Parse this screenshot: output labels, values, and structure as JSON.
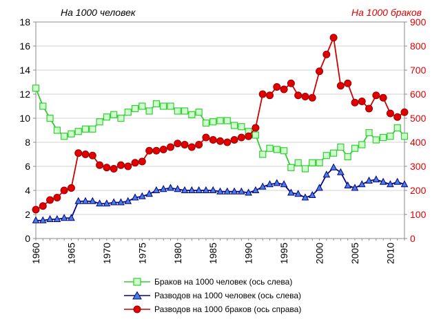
{
  "unit_labels": {
    "left": "На 1000 человек",
    "right": "На 1000 браков"
  },
  "legend": [
    {
      "label": "Браков на 1000 человек (ось слева)"
    },
    {
      "label": "Разводов на 1000 человек (ось слева)"
    },
    {
      "label": "Разводов на 1000 браков (ось справа)"
    }
  ],
  "colors": {
    "marriages": "#33cc33",
    "marriages_fill": "#ccffcc",
    "divorces_per_people": "#00008b",
    "divorces_per_people_fill": "#4a7fd8",
    "divorces_per_marriages": "#cc0000",
    "grid": "#d0d0d0",
    "right_axis_text": "#e00000"
  },
  "chart_data": {
    "type": "line",
    "x": [
      1960,
      1961,
      1962,
      1963,
      1964,
      1965,
      1966,
      1967,
      1968,
      1969,
      1970,
      1971,
      1972,
      1973,
      1974,
      1975,
      1976,
      1977,
      1978,
      1979,
      1980,
      1981,
      1982,
      1983,
      1984,
      1985,
      1986,
      1987,
      1988,
      1989,
      1990,
      1991,
      1992,
      1993,
      1994,
      1995,
      1996,
      1997,
      1998,
      1999,
      2000,
      2001,
      2002,
      2003,
      2004,
      2005,
      2006,
      2007,
      2008,
      2009,
      2010,
      2011,
      2012
    ],
    "xticks": [
      "1960",
      "1965",
      "1970",
      "1975",
      "1980",
      "1985",
      "1990",
      "1995",
      "2000",
      "2005",
      "2010"
    ],
    "xlim": [
      1960,
      2012
    ],
    "ylim_left": [
      0,
      18
    ],
    "yticks_left": [
      "0",
      "2",
      "4",
      "6",
      "8",
      "10",
      "12",
      "14",
      "16",
      "18"
    ],
    "ylim_right": [
      0,
      900
    ],
    "yticks_right": [
      "0",
      "100",
      "200",
      "300",
      "400",
      "500",
      "600",
      "700",
      "800",
      "900"
    ],
    "grid": true,
    "legend_position": "bottom",
    "series": [
      {
        "name": "Браков на 1000 человек (ось слева)",
        "axis": "left",
        "marker": "square",
        "values": [
          12.5,
          11.0,
          10.0,
          9.0,
          8.5,
          8.7,
          8.9,
          9.1,
          9.1,
          9.7,
          10.1,
          10.3,
          10.0,
          10.5,
          10.8,
          11.0,
          10.6,
          11.2,
          11.0,
          11.0,
          10.6,
          10.6,
          10.3,
          10.5,
          9.6,
          9.7,
          9.8,
          9.8,
          9.4,
          9.3,
          8.9,
          8.6,
          7.0,
          7.5,
          7.4,
          7.3,
          5.9,
          6.3,
          5.8,
          6.3,
          6.3,
          6.9,
          7.1,
          7.6,
          6.8,
          7.5,
          7.8,
          8.8,
          8.2,
          8.4,
          8.5,
          9.2,
          8.5
        ]
      },
      {
        "name": "Разводов на 1000 человек (ось слева)",
        "axis": "left",
        "marker": "triangle",
        "values": [
          1.5,
          1.5,
          1.6,
          1.6,
          1.7,
          1.7,
          3.1,
          3.1,
          3.1,
          2.9,
          2.9,
          3.0,
          3.0,
          3.1,
          3.4,
          3.5,
          3.7,
          4.0,
          4.1,
          4.2,
          4.1,
          4.0,
          4.0,
          4.0,
          4.0,
          4.0,
          3.9,
          3.9,
          3.9,
          3.9,
          3.8,
          4.0,
          4.3,
          4.5,
          4.6,
          4.5,
          3.8,
          3.7,
          3.4,
          3.6,
          4.2,
          5.3,
          5.9,
          5.5,
          4.4,
          4.2,
          4.5,
          4.8,
          4.9,
          4.7,
          4.5,
          4.7,
          4.5
        ]
      },
      {
        "name": "Разводов на 1000 браков (ось справа)",
        "axis": "right",
        "marker": "circle",
        "values": [
          120,
          135,
          160,
          170,
          200,
          210,
          355,
          350,
          345,
          305,
          295,
          290,
          305,
          300,
          315,
          320,
          365,
          365,
          370,
          380,
          395,
          390,
          380,
          390,
          420,
          410,
          405,
          400,
          410,
          420,
          425,
          460,
          600,
          595,
          630,
          620,
          645,
          595,
          590,
          585,
          695,
          765,
          835,
          635,
          645,
          565,
          570,
          540,
          595,
          585,
          520,
          505,
          525
        ]
      }
    ]
  }
}
